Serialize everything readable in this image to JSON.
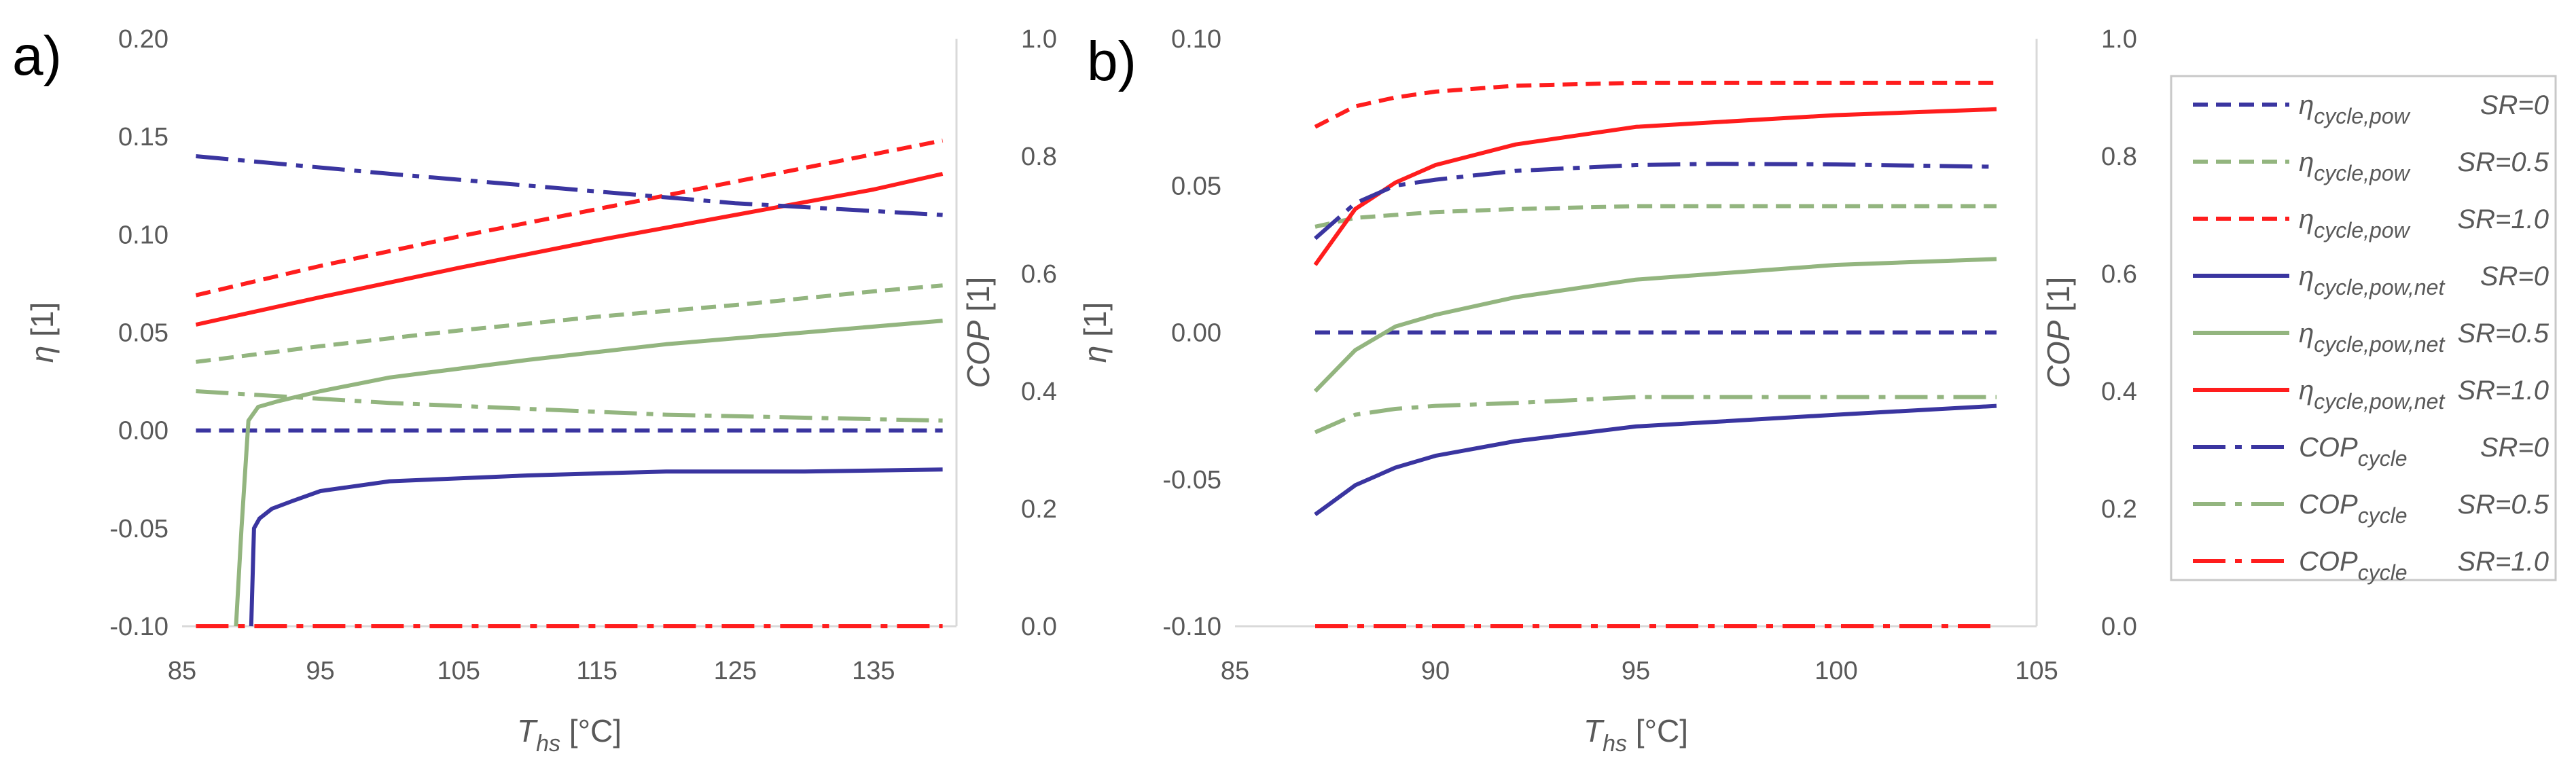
{
  "colors": {
    "SR=0": "#3a35a0",
    "SR=0.5": "#93b57f",
    "SR=1.0": "#ff1d1d",
    "axis": "#d9d9d9",
    "text": "#595959"
  },
  "legend": {
    "items": [
      {
        "sym": "η",
        "sub": "cycle,pow",
        "sr": "SR=0",
        "style": "dash",
        "color_key": "SR=0"
      },
      {
        "sym": "η",
        "sub": "cycle,pow",
        "sr": "SR=0.5",
        "style": "dash",
        "color_key": "SR=0.5"
      },
      {
        "sym": "η",
        "sub": "cycle,pow",
        "sr": "SR=1.0",
        "style": "dash",
        "color_key": "SR=1.0"
      },
      {
        "sym": "η",
        "sub": "cycle,pow,net",
        "sr": "SR=0",
        "style": "solid",
        "color_key": "SR=0"
      },
      {
        "sym": "η",
        "sub": "cycle,pow,net",
        "sr": "SR=0.5",
        "style": "solid",
        "color_key": "SR=0.5"
      },
      {
        "sym": "η",
        "sub": "cycle,pow,net",
        "sr": "SR=1.0",
        "style": "solid",
        "color_key": "SR=1.0"
      },
      {
        "sym": "COP",
        "sub": "cycle",
        "sr": "SR=0",
        "style": "dashdot",
        "color_key": "SR=0"
      },
      {
        "sym": "COP",
        "sub": "cycle",
        "sr": "SR=0.5",
        "style": "dashdot",
        "color_key": "SR=0.5"
      },
      {
        "sym": "COP",
        "sub": "cycle",
        "sr": "SR=1.0",
        "style": "dashdot",
        "color_key": "SR=1.0"
      }
    ]
  },
  "chart_data": [
    {
      "panel": "a)",
      "type": "line",
      "xlabel_main": "T",
      "xlabel_sub": "hs",
      "xlabel_unit": " [°C]",
      "ylabel_left": "η",
      "ylabel_left_unit": " [1]",
      "ylabel_right": "COP",
      "ylabel_right_unit": " [1]",
      "xlim": [
        85,
        141
      ],
      "xticks": [
        "85",
        "95",
        "105",
        "115",
        "125",
        "135"
      ],
      "ylim_left": [
        -0.1,
        0.2
      ],
      "yticks_left": [
        "-0.10",
        "-0.05",
        "0.00",
        "0.05",
        "0.10",
        "0.15",
        "0.20"
      ],
      "ylim_right": [
        0.0,
        1.0
      ],
      "yticks_right": [
        "0.0",
        "0.2",
        "0.4",
        "0.6",
        "0.8",
        "1.0"
      ],
      "series": [
        {
          "name": "η cycle,pow SR=0",
          "axis": "left",
          "style": "dash",
          "color_key": "SR=0",
          "x": [
            86,
            140
          ],
          "y": [
            0.0,
            0.0
          ]
        },
        {
          "name": "η cycle,pow SR=0.5",
          "axis": "left",
          "style": "dash",
          "color_key": "SR=0.5",
          "x": [
            86,
            95,
            105,
            115,
            125,
            135,
            140
          ],
          "y": [
            0.035,
            0.043,
            0.051,
            0.058,
            0.064,
            0.071,
            0.074
          ]
        },
        {
          "name": "η cycle,pow SR=1.0",
          "axis": "left",
          "style": "dash",
          "color_key": "SR=1.0",
          "x": [
            86,
            95,
            105,
            115,
            125,
            135,
            140
          ],
          "y": [
            0.069,
            0.084,
            0.099,
            0.113,
            0.127,
            0.141,
            0.148
          ]
        },
        {
          "name": "η cycle,pow,net SR=0",
          "axis": "left",
          "style": "solid",
          "color_key": "SR=0",
          "x": [
            90.0,
            90.2,
            90.6,
            91.5,
            93,
            95,
            100,
            110,
            120,
            130,
            140
          ],
          "y": [
            -0.1,
            -0.05,
            -0.045,
            -0.04,
            -0.036,
            -0.031,
            -0.026,
            -0.023,
            -0.021,
            -0.021,
            -0.02
          ]
        },
        {
          "name": "η cycle,pow,net SR=0.5",
          "axis": "left",
          "style": "solid",
          "color_key": "SR=0.5",
          "x": [
            88.9,
            89.3,
            89.8,
            90.5,
            92,
            95,
            100,
            110,
            120,
            130,
            140
          ],
          "y": [
            -0.1,
            -0.05,
            0.005,
            0.012,
            0.015,
            0.02,
            0.027,
            0.036,
            0.044,
            0.05,
            0.056
          ]
        },
        {
          "name": "η cycle,pow,net SR=1.0",
          "axis": "left",
          "style": "solid",
          "color_key": "SR=1.0",
          "x": [
            86,
            95,
            105,
            115,
            125,
            135,
            140
          ],
          "y": [
            0.054,
            0.068,
            0.083,
            0.097,
            0.11,
            0.123,
            0.131
          ]
        },
        {
          "name": "COP cycle SR=0",
          "axis": "right",
          "style": "dashdot",
          "color_key": "SR=0",
          "x": [
            86,
            100,
            115,
            125,
            140
          ],
          "y": [
            0.8,
            0.77,
            0.74,
            0.72,
            0.7
          ]
        },
        {
          "name": "COP cycle SR=0.5",
          "axis": "right",
          "style": "dashdot",
          "color_key": "SR=0.5",
          "x": [
            86,
            100,
            120,
            140
          ],
          "y": [
            0.4,
            0.38,
            0.36,
            0.35
          ]
        },
        {
          "name": "COP cycle SR=1.0",
          "axis": "right",
          "style": "dashdot",
          "color_key": "SR=1.0",
          "x": [
            86,
            140
          ],
          "y": [
            0.0,
            0.0
          ]
        }
      ]
    },
    {
      "panel": "b)",
      "type": "line",
      "xlabel_main": "T",
      "xlabel_sub": "hs",
      "xlabel_unit": " [°C]",
      "ylabel_left": "η",
      "ylabel_left_unit": " [1]",
      "ylabel_right": "COP",
      "ylabel_right_unit": " [1]",
      "xlim": [
        85,
        105
      ],
      "xticks": [
        "85",
        "90",
        "95",
        "100",
        "105"
      ],
      "ylim_left": [
        -0.1,
        0.1
      ],
      "yticks_left": [
        "-0.10",
        "-0.05",
        "0.00",
        "0.05",
        "0.10"
      ],
      "ylim_right": [
        0.0,
        1.0
      ],
      "yticks_right": [
        "0.0",
        "0.2",
        "0.4",
        "0.6",
        "0.8",
        "1.0"
      ],
      "series": [
        {
          "name": "η cycle,pow SR=0",
          "axis": "left",
          "style": "dash",
          "color_key": "SR=0",
          "x": [
            87,
            104
          ],
          "y": [
            0.0,
            0.0
          ]
        },
        {
          "name": "η cycle,pow SR=0.5",
          "axis": "left",
          "style": "dash",
          "color_key": "SR=0.5",
          "x": [
            87,
            88,
            90,
            92,
            95,
            100,
            104
          ],
          "y": [
            0.036,
            0.039,
            0.041,
            0.042,
            0.043,
            0.043,
            0.043
          ]
        },
        {
          "name": "η cycle,pow SR=1.0",
          "axis": "left",
          "style": "dash",
          "color_key": "SR=1.0",
          "x": [
            87,
            88,
            89,
            90,
            92,
            95,
            100,
            104
          ],
          "y": [
            0.07,
            0.077,
            0.08,
            0.082,
            0.084,
            0.085,
            0.085,
            0.085
          ]
        },
        {
          "name": "η cycle,pow,net SR=0",
          "axis": "left",
          "style": "solid",
          "color_key": "SR=0",
          "x": [
            87,
            88,
            89,
            90,
            92,
            95,
            100,
            104
          ],
          "y": [
            -0.062,
            -0.052,
            -0.046,
            -0.042,
            -0.037,
            -0.032,
            -0.028,
            -0.025
          ]
        },
        {
          "name": "η cycle,pow,net SR=0.5",
          "axis": "left",
          "style": "solid",
          "color_key": "SR=0.5",
          "x": [
            87,
            88,
            89,
            90,
            92,
            95,
            100,
            104
          ],
          "y": [
            -0.02,
            -0.006,
            0.002,
            0.006,
            0.012,
            0.018,
            0.023,
            0.025
          ]
        },
        {
          "name": "η cycle,pow,net SR=1.0",
          "axis": "left",
          "style": "solid",
          "color_key": "SR=1.0",
          "x": [
            87,
            88,
            89,
            90,
            92,
            95,
            100,
            104
          ],
          "y": [
            0.023,
            0.042,
            0.051,
            0.057,
            0.064,
            0.07,
            0.074,
            0.076
          ]
        },
        {
          "name": "COP cycle SR=0",
          "axis": "right",
          "style": "dashdot",
          "color_key": "SR=0",
          "x": [
            87,
            88,
            89,
            90,
            92,
            95,
            97,
            100,
            104
          ],
          "y": [
            0.66,
            0.72,
            0.75,
            0.76,
            0.775,
            0.785,
            0.787,
            0.786,
            0.782
          ]
        },
        {
          "name": "COP cycle SR=0.5",
          "axis": "right",
          "style": "dashdot",
          "color_key": "SR=0.5",
          "x": [
            87,
            88,
            89,
            90,
            92,
            95,
            100,
            104
          ],
          "y": [
            0.33,
            0.36,
            0.37,
            0.375,
            0.38,
            0.39,
            0.39,
            0.39
          ]
        },
        {
          "name": "COP cycle SR=1.0",
          "axis": "right",
          "style": "dashdot",
          "color_key": "SR=1.0",
          "x": [
            87,
            104
          ],
          "y": [
            0.0,
            0.0
          ]
        }
      ]
    }
  ]
}
